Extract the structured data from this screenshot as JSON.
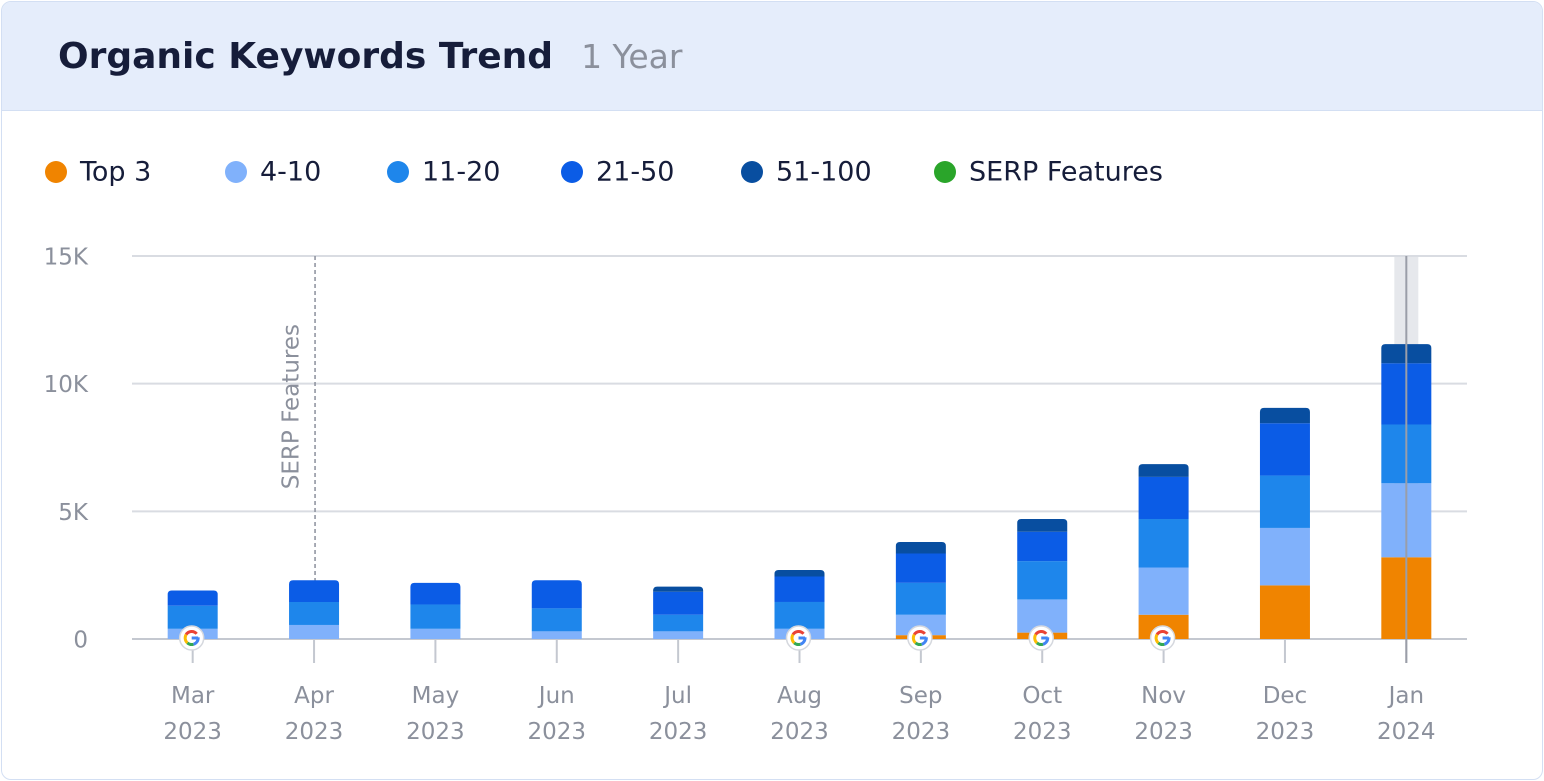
{
  "chart_data": {
    "type": "stacked-bar",
    "title": "Organic Keywords Trend",
    "subtitle": "1 Year",
    "categories": [
      [
        "Mar",
        "2023"
      ],
      [
        "Apr",
        "2023"
      ],
      [
        "May",
        "2023"
      ],
      [
        "Jun",
        "2023"
      ],
      [
        "Jul",
        "2023"
      ],
      [
        "Aug",
        "2023"
      ],
      [
        "Sep",
        "2023"
      ],
      [
        "Oct",
        "2023"
      ],
      [
        "Nov",
        "2023"
      ],
      [
        "Dec",
        "2023"
      ],
      [
        "Jan",
        "2024"
      ]
    ],
    "series": [
      {
        "name": "Top 3",
        "color": "#f08400",
        "values": [
          0,
          0,
          0,
          0,
          0,
          0,
          150,
          250,
          950,
          2100,
          3200
        ]
      },
      {
        "name": "4-10",
        "color": "#80b1fb",
        "values": [
          400,
          550,
          400,
          300,
          300,
          400,
          800,
          1300,
          1850,
          2250,
          2900
        ]
      },
      {
        "name": "11-20",
        "color": "#1e86eb",
        "values": [
          900,
          900,
          950,
          900,
          650,
          1050,
          1250,
          1500,
          1900,
          2050,
          2300
        ]
      },
      {
        "name": "21-50",
        "color": "#0b5ce6",
        "values": [
          600,
          850,
          850,
          1100,
          900,
          1000,
          1150,
          1150,
          1650,
          2050,
          2400
        ]
      },
      {
        "name": "51-100",
        "color": "#084ea0",
        "values": [
          0,
          0,
          0,
          0,
          200,
          250,
          450,
          500,
          500,
          600,
          750
        ]
      }
    ],
    "serp_features": {
      "name": "SERP Features",
      "color": "#2aa52a",
      "present": [
        true,
        false,
        false,
        false,
        false,
        true,
        true,
        true,
        true,
        false,
        false
      ]
    },
    "annotation": {
      "text": "SERP Features",
      "category_index": 1
    },
    "ylim": [
      0,
      15000
    ],
    "yticks": [
      0,
      {
        "value": 5000,
        "label": "5K"
      },
      {
        "value": 10000,
        "label": "10K"
      },
      {
        "value": 15000,
        "label": "15K"
      }
    ],
    "grid": true
  }
}
